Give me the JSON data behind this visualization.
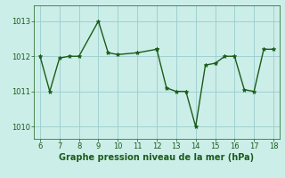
{
  "series1_x": [
    6,
    6.5,
    7,
    7.5,
    8,
    9,
    9.5,
    10,
    11,
    12
  ],
  "series1_y": [
    1012.0,
    1011.0,
    1011.95,
    1012.0,
    1012.0,
    1013.0,
    1012.1,
    1012.05,
    1012.1,
    1012.2
  ],
  "series2_x": [
    12,
    12.5,
    13,
    13.5,
    14,
    14.5,
    15,
    15.5,
    16,
    16.5,
    17,
    17.5,
    18
  ],
  "series2_y": [
    1012.2,
    1011.1,
    1011.0,
    1011.0,
    1010.0,
    1011.75,
    1011.8,
    1012.0,
    1012.0,
    1011.05,
    1011.0,
    1012.2,
    1012.2
  ],
  "line_color": "#1a5c1a",
  "bg_color": "#cceee8",
  "grid_color": "#99cccc",
  "xlabel": "Graphe pression niveau de la mer (hPa)",
  "xlim": [
    5.7,
    18.3
  ],
  "ylim": [
    1009.65,
    1013.45
  ],
  "yticks": [
    1010,
    1011,
    1012,
    1013
  ],
  "xticks": [
    6,
    7,
    8,
    9,
    10,
    11,
    12,
    13,
    14,
    15,
    16,
    17,
    18
  ],
  "xlabel_fontsize": 7.0,
  "tick_fontsize": 6.0,
  "line_width": 1.0,
  "marker_size": 3.5
}
